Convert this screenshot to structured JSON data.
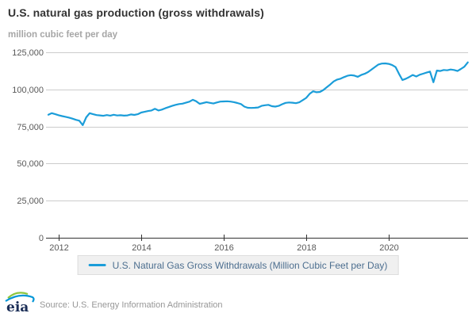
{
  "header": {
    "title": "U.S. natural gas production (gross withdrawals)",
    "subtitle": "million cubic feet per day"
  },
  "legend": {
    "label": "U.S. Natural Gas Gross Withdrawals (Million Cubic Feet per Day)"
  },
  "footer": {
    "logo_text": "eia",
    "source": "Source: U.S. Energy Information Administration"
  },
  "colors": {
    "line": "#1b9dd9",
    "grid": "#cccccc",
    "axis": "#333333",
    "tick_text": "#595959",
    "legend_text": "#4c6e8f",
    "legend_bg": "#f0f0f0",
    "title": "#333333",
    "subtitle": "#a6a6a6",
    "source_text": "#979797",
    "logo_green": "#8dc63f",
    "logo_blue": "#0096d7",
    "logo_navy": "#1b2e57"
  },
  "chart_data": {
    "type": "line",
    "title": "U.S. natural gas production (gross withdrawals)",
    "ylabel": "million cubic feet per day",
    "series_name": "U.S. Natural Gas Gross Withdrawals (Million Cubic Feet per Day)",
    "grid": "horizontal",
    "legend_position": "bottom",
    "ylim": [
      0,
      126500
    ],
    "x_domain_years": [
      2011.69,
      2021.93
    ],
    "x_start_year": 2011.75,
    "x_step": "monthly",
    "y_ticks": [
      {
        "value": 0,
        "label": "0"
      },
      {
        "value": 25000,
        "label": "25,000"
      },
      {
        "value": 50000,
        "label": "50,000"
      },
      {
        "value": 75000,
        "label": "75,000"
      },
      {
        "value": 100000,
        "label": "100,000"
      },
      {
        "value": 125000,
        "label": "125,000"
      }
    ],
    "x_ticks": [
      {
        "value": 2012,
        "label": "2012"
      },
      {
        "value": 2014,
        "label": "2014"
      },
      {
        "value": 2016,
        "label": "2016"
      },
      {
        "value": 2018,
        "label": "2018"
      },
      {
        "value": 2020,
        "label": "2020"
      }
    ],
    "values": [
      82900,
      84000,
      83300,
      82600,
      82000,
      81500,
      81000,
      80300,
      79500,
      78900,
      75900,
      81200,
      84000,
      83300,
      82700,
      82500,
      82200,
      82700,
      82300,
      82900,
      82400,
      82600,
      82300,
      82500,
      83100,
      82800,
      83300,
      84400,
      84900,
      85400,
      85800,
      86900,
      85800,
      86400,
      87300,
      88100,
      88900,
      89600,
      90100,
      90400,
      91000,
      91700,
      93000,
      92000,
      90300,
      90800,
      91400,
      90900,
      90500,
      91200,
      91800,
      91900,
      92000,
      91800,
      91400,
      90800,
      90100,
      88400,
      87600,
      87500,
      87600,
      87800,
      88900,
      89300,
      89600,
      88700,
      88400,
      88900,
      90000,
      90900,
      91200,
      91000,
      90700,
      91300,
      92800,
      94300,
      97000,
      98700,
      98100,
      98300,
      99600,
      101500,
      103300,
      105400,
      106600,
      107200,
      108300,
      109200,
      109600,
      109300,
      108500,
      109700,
      110500,
      111700,
      113400,
      115100,
      116800,
      117400,
      117500,
      117200,
      116400,
      115000,
      110400,
      106300,
      107200,
      108400,
      109700,
      108700,
      109900,
      110600,
      111300,
      112000,
      104800,
      112700,
      112400,
      113100,
      112900,
      113400,
      113100,
      112400,
      113800,
      115300,
      118200
    ]
  }
}
